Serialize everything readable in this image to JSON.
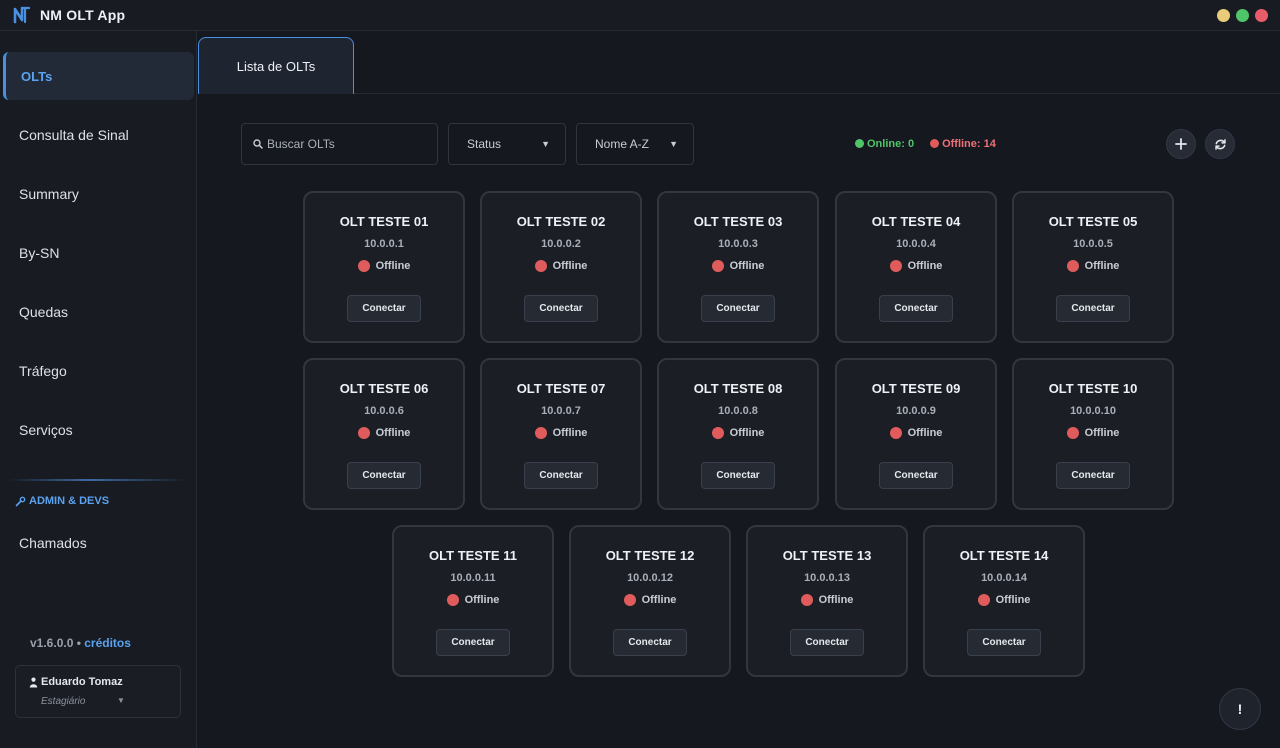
{
  "app": {
    "title": "NM OLT App"
  },
  "window_controls": [
    {
      "name": "minimize",
      "color": "#e8cc7a"
    },
    {
      "name": "maximize",
      "color": "#4fc468"
    },
    {
      "name": "close",
      "color": "#e85c6a"
    }
  ],
  "sidebar": {
    "items": [
      {
        "label": "OLTs",
        "active": true
      },
      {
        "label": "Consulta de Sinal",
        "active": false
      },
      {
        "label": "Summary",
        "active": false
      },
      {
        "label": "By-SN",
        "active": false
      },
      {
        "label": "Quedas",
        "active": false
      },
      {
        "label": "Tráfego",
        "active": false
      },
      {
        "label": "Serviços",
        "active": false
      }
    ],
    "admin_section_label": "ADMIN & DEVS",
    "admin_items": [
      {
        "label": "Chamados"
      }
    ],
    "version": "v1.6.0.0",
    "version_separator": " • ",
    "credits_label": "créditos",
    "user": {
      "name": "Eduardo Tomaz",
      "role": "Estagiário",
      "icon": "user-icon"
    }
  },
  "tabs": [
    {
      "label": "Lista de OLTs",
      "active": true
    }
  ],
  "toolbar": {
    "search_placeholder": "Buscar OLTs",
    "status_filter": "Status",
    "sort_select": "Nome A-Z",
    "online_label": "Online: 0",
    "offline_label": "Offline: 14",
    "online_color": "#4fc468",
    "offline_color": "#f07078",
    "add_icon": "plus-icon",
    "refresh_icon": "refresh-icon"
  },
  "olts": [
    {
      "name": "OLT TESTE 01",
      "ip": "10.0.0.1",
      "status": "Offline",
      "action": "Conectar"
    },
    {
      "name": "OLT TESTE 02",
      "ip": "10.0.0.2",
      "status": "Offline",
      "action": "Conectar"
    },
    {
      "name": "OLT TESTE 03",
      "ip": "10.0.0.3",
      "status": "Offline",
      "action": "Conectar"
    },
    {
      "name": "OLT TESTE 04",
      "ip": "10.0.0.4",
      "status": "Offline",
      "action": "Conectar"
    },
    {
      "name": "OLT TESTE 05",
      "ip": "10.0.0.5",
      "status": "Offline",
      "action": "Conectar"
    },
    {
      "name": "OLT TESTE 06",
      "ip": "10.0.0.6",
      "status": "Offline",
      "action": "Conectar"
    },
    {
      "name": "OLT TESTE 07",
      "ip": "10.0.0.7",
      "status": "Offline",
      "action": "Conectar"
    },
    {
      "name": "OLT TESTE 08",
      "ip": "10.0.0.8",
      "status": "Offline",
      "action": "Conectar"
    },
    {
      "name": "OLT TESTE 09",
      "ip": "10.0.0.9",
      "status": "Offline",
      "action": "Conectar"
    },
    {
      "name": "OLT TESTE 10",
      "ip": "10.0.0.10",
      "status": "Offline",
      "action": "Conectar"
    },
    {
      "name": "OLT TESTE 11",
      "ip": "10.0.0.11",
      "status": "Offline",
      "action": "Conectar"
    },
    {
      "name": "OLT TESTE 12",
      "ip": "10.0.0.12",
      "status": "Offline",
      "action": "Conectar"
    },
    {
      "name": "OLT TESTE 13",
      "ip": "10.0.0.13",
      "status": "Offline",
      "action": "Conectar"
    },
    {
      "name": "OLT TESTE 14",
      "ip": "10.0.0.14",
      "status": "Offline",
      "action": "Conectar"
    }
  ],
  "help_button": {
    "label": "!"
  }
}
